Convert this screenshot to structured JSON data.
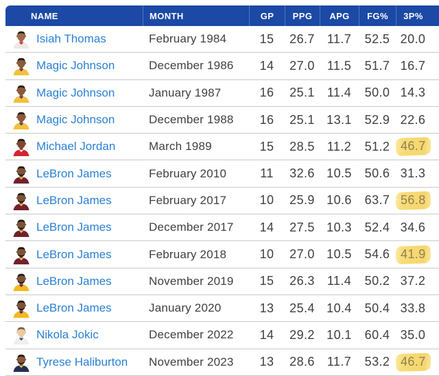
{
  "table": {
    "colors": {
      "header_bg": "#1b49a5",
      "header_divider": "rgba(255,255,255,0.25)",
      "header_text": "#ffffff",
      "row_divider": "#c9c9c9",
      "link": "#2b80d4",
      "text": "#3f3f3f",
      "highlight_bg": "#f6d56e",
      "highlight_text": "#8d8153"
    },
    "columns": [
      {
        "key": "name",
        "label": "NAME",
        "numeric": false
      },
      {
        "key": "month",
        "label": "MONTH",
        "numeric": false
      },
      {
        "key": "gp",
        "label": "GP",
        "numeric": true
      },
      {
        "key": "ppg",
        "label": "PPG",
        "numeric": true
      },
      {
        "key": "apg",
        "label": "APG",
        "numeric": true
      },
      {
        "key": "fg_pct",
        "label": "FG%",
        "numeric": true
      },
      {
        "key": "three_pct",
        "label": "3P%",
        "numeric": true
      }
    ],
    "rows": [
      {
        "name": "Isiah Thomas",
        "month": "February 1984",
        "gp": "15",
        "ppg": "26.7",
        "apg": "11.7",
        "fg_pct": "52.5",
        "three_pct": "20.0",
        "three_pct_highlighted": false,
        "avatar": {
          "skin": "#a06a4c",
          "hair": "#241a14",
          "jersey": "#efe9e4",
          "trim": "#cf3339",
          "beard": false
        }
      },
      {
        "name": "Magic Johnson",
        "month": "December 1986",
        "gp": "14",
        "ppg": "27.0",
        "apg": "11.5",
        "fg_pct": "51.7",
        "three_pct": "16.7",
        "three_pct_highlighted": false,
        "avatar": {
          "skin": "#8a5a3a",
          "hair": "#241a14",
          "jersey": "#f2c13c",
          "trim": "#5b2b82",
          "beard": false
        }
      },
      {
        "name": "Magic Johnson",
        "month": "January 1987",
        "gp": "16",
        "ppg": "25.1",
        "apg": "11.4",
        "fg_pct": "50.0",
        "three_pct": "14.3",
        "three_pct_highlighted": false,
        "avatar": {
          "skin": "#8a5a3a",
          "hair": "#241a14",
          "jersey": "#f2c13c",
          "trim": "#5b2b82",
          "beard": false
        }
      },
      {
        "name": "Magic Johnson",
        "month": "December 1988",
        "gp": "16",
        "ppg": "25.1",
        "apg": "13.1",
        "fg_pct": "52.9",
        "three_pct": "22.6",
        "three_pct_highlighted": false,
        "avatar": {
          "skin": "#8a5a3a",
          "hair": "#241a14",
          "jersey": "#f2c13c",
          "trim": "#5b2b82",
          "beard": false
        }
      },
      {
        "name": "Michael Jordan",
        "month": "March 1989",
        "gp": "15",
        "ppg": "28.5",
        "apg": "11.2",
        "fg_pct": "51.2",
        "three_pct": "46.7",
        "three_pct_highlighted": true,
        "avatar": {
          "skin": "#7c4630",
          "hair": "#241a14",
          "jersey": "#d2242f",
          "trim": "#f0ece8",
          "beard": false
        }
      },
      {
        "name": "LeBron James",
        "month": "February 2010",
        "gp": "11",
        "ppg": "32.6",
        "apg": "10.5",
        "fg_pct": "50.6",
        "three_pct": "31.3",
        "three_pct_highlighted": false,
        "avatar": {
          "skin": "#7d5336",
          "hair": "#241a14",
          "jersey": "#722030",
          "trim": "#f2c13c",
          "beard": true
        }
      },
      {
        "name": "LeBron James",
        "month": "February 2017",
        "gp": "10",
        "ppg": "25.9",
        "apg": "10.6",
        "fg_pct": "63.7",
        "three_pct": "56.8",
        "three_pct_highlighted": true,
        "avatar": {
          "skin": "#7d5336",
          "hair": "#241a14",
          "jersey": "#722030",
          "trim": "#f2c13c",
          "beard": true
        }
      },
      {
        "name": "LeBron James",
        "month": "December 2017",
        "gp": "14",
        "ppg": "27.5",
        "apg": "10.3",
        "fg_pct": "52.4",
        "three_pct": "34.6",
        "three_pct_highlighted": false,
        "avatar": {
          "skin": "#7d5336",
          "hair": "#241a14",
          "jersey": "#722030",
          "trim": "#f2c13c",
          "beard": true
        }
      },
      {
        "name": "LeBron James",
        "month": "February 2018",
        "gp": "10",
        "ppg": "27.0",
        "apg": "10.5",
        "fg_pct": "54.6",
        "three_pct": "41.9",
        "three_pct_highlighted": true,
        "avatar": {
          "skin": "#7d5336",
          "hair": "#241a14",
          "jersey": "#722030",
          "trim": "#f2c13c",
          "beard": true
        }
      },
      {
        "name": "LeBron James",
        "month": "November 2019",
        "gp": "15",
        "ppg": "26.3",
        "apg": "11.4",
        "fg_pct": "50.2",
        "three_pct": "37.2",
        "three_pct_highlighted": false,
        "avatar": {
          "skin": "#7d5336",
          "hair": "#241a14",
          "jersey": "#f5b81f",
          "trim": "#552583",
          "beard": true
        }
      },
      {
        "name": "LeBron James",
        "month": "January 2020",
        "gp": "13",
        "ppg": "25.4",
        "apg": "10.4",
        "fg_pct": "50.4",
        "three_pct": "33.8",
        "three_pct_highlighted": false,
        "avatar": {
          "skin": "#7d5336",
          "hair": "#241a14",
          "jersey": "#f5b81f",
          "trim": "#552583",
          "beard": true
        }
      },
      {
        "name": "Nikola Jokic",
        "month": "December 2022",
        "gp": "14",
        "ppg": "29.2",
        "apg": "10.1",
        "fg_pct": "60.4",
        "three_pct": "35.0",
        "three_pct_highlighted": false,
        "avatar": {
          "skin": "#eac9a4",
          "hair": "#7b5f41",
          "jersey": "#efefef",
          "trim": "#274b9f",
          "beard": false
        }
      },
      {
        "name": "Tyrese Haliburton",
        "month": "November 2023",
        "gp": "13",
        "ppg": "28.6",
        "apg": "11.7",
        "fg_pct": "53.2",
        "three_pct": "46.7",
        "three_pct_highlighted": true,
        "avatar": {
          "skin": "#8a5a3a",
          "hair": "#241a14",
          "jersey": "#232e54",
          "trim": "#f2c13c",
          "beard": true
        }
      }
    ]
  }
}
